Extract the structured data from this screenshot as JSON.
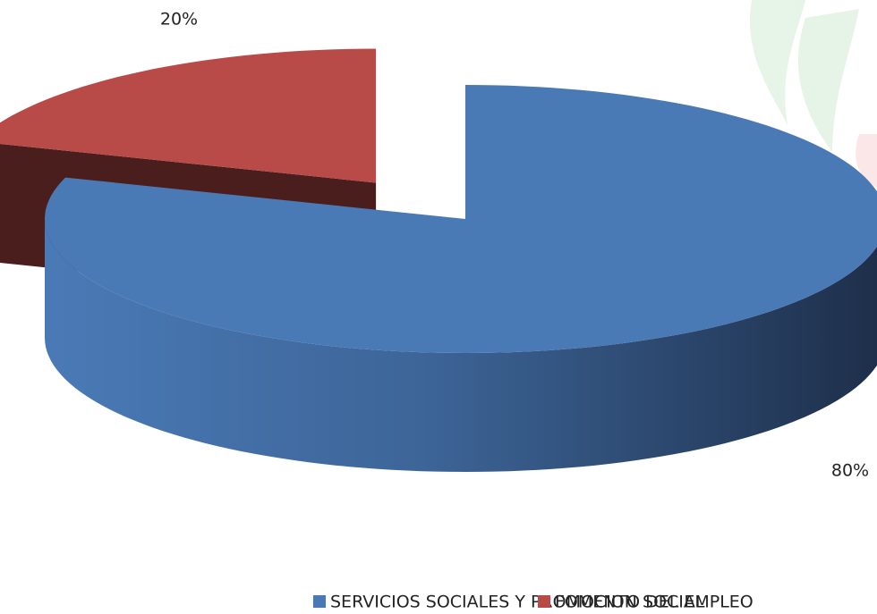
{
  "chart_data": {
    "type": "pie",
    "categories": [
      "SERVICIOS SOCIALES Y PROMOCION SOCIAL",
      "FOMENTO DEL EMPLEO"
    ],
    "values": [
      80,
      20
    ],
    "value_labels": [
      "80%",
      "20%"
    ],
    "colors": [
      "#4a7ab6",
      "#b84a48"
    ],
    "legend": "bottom"
  }
}
